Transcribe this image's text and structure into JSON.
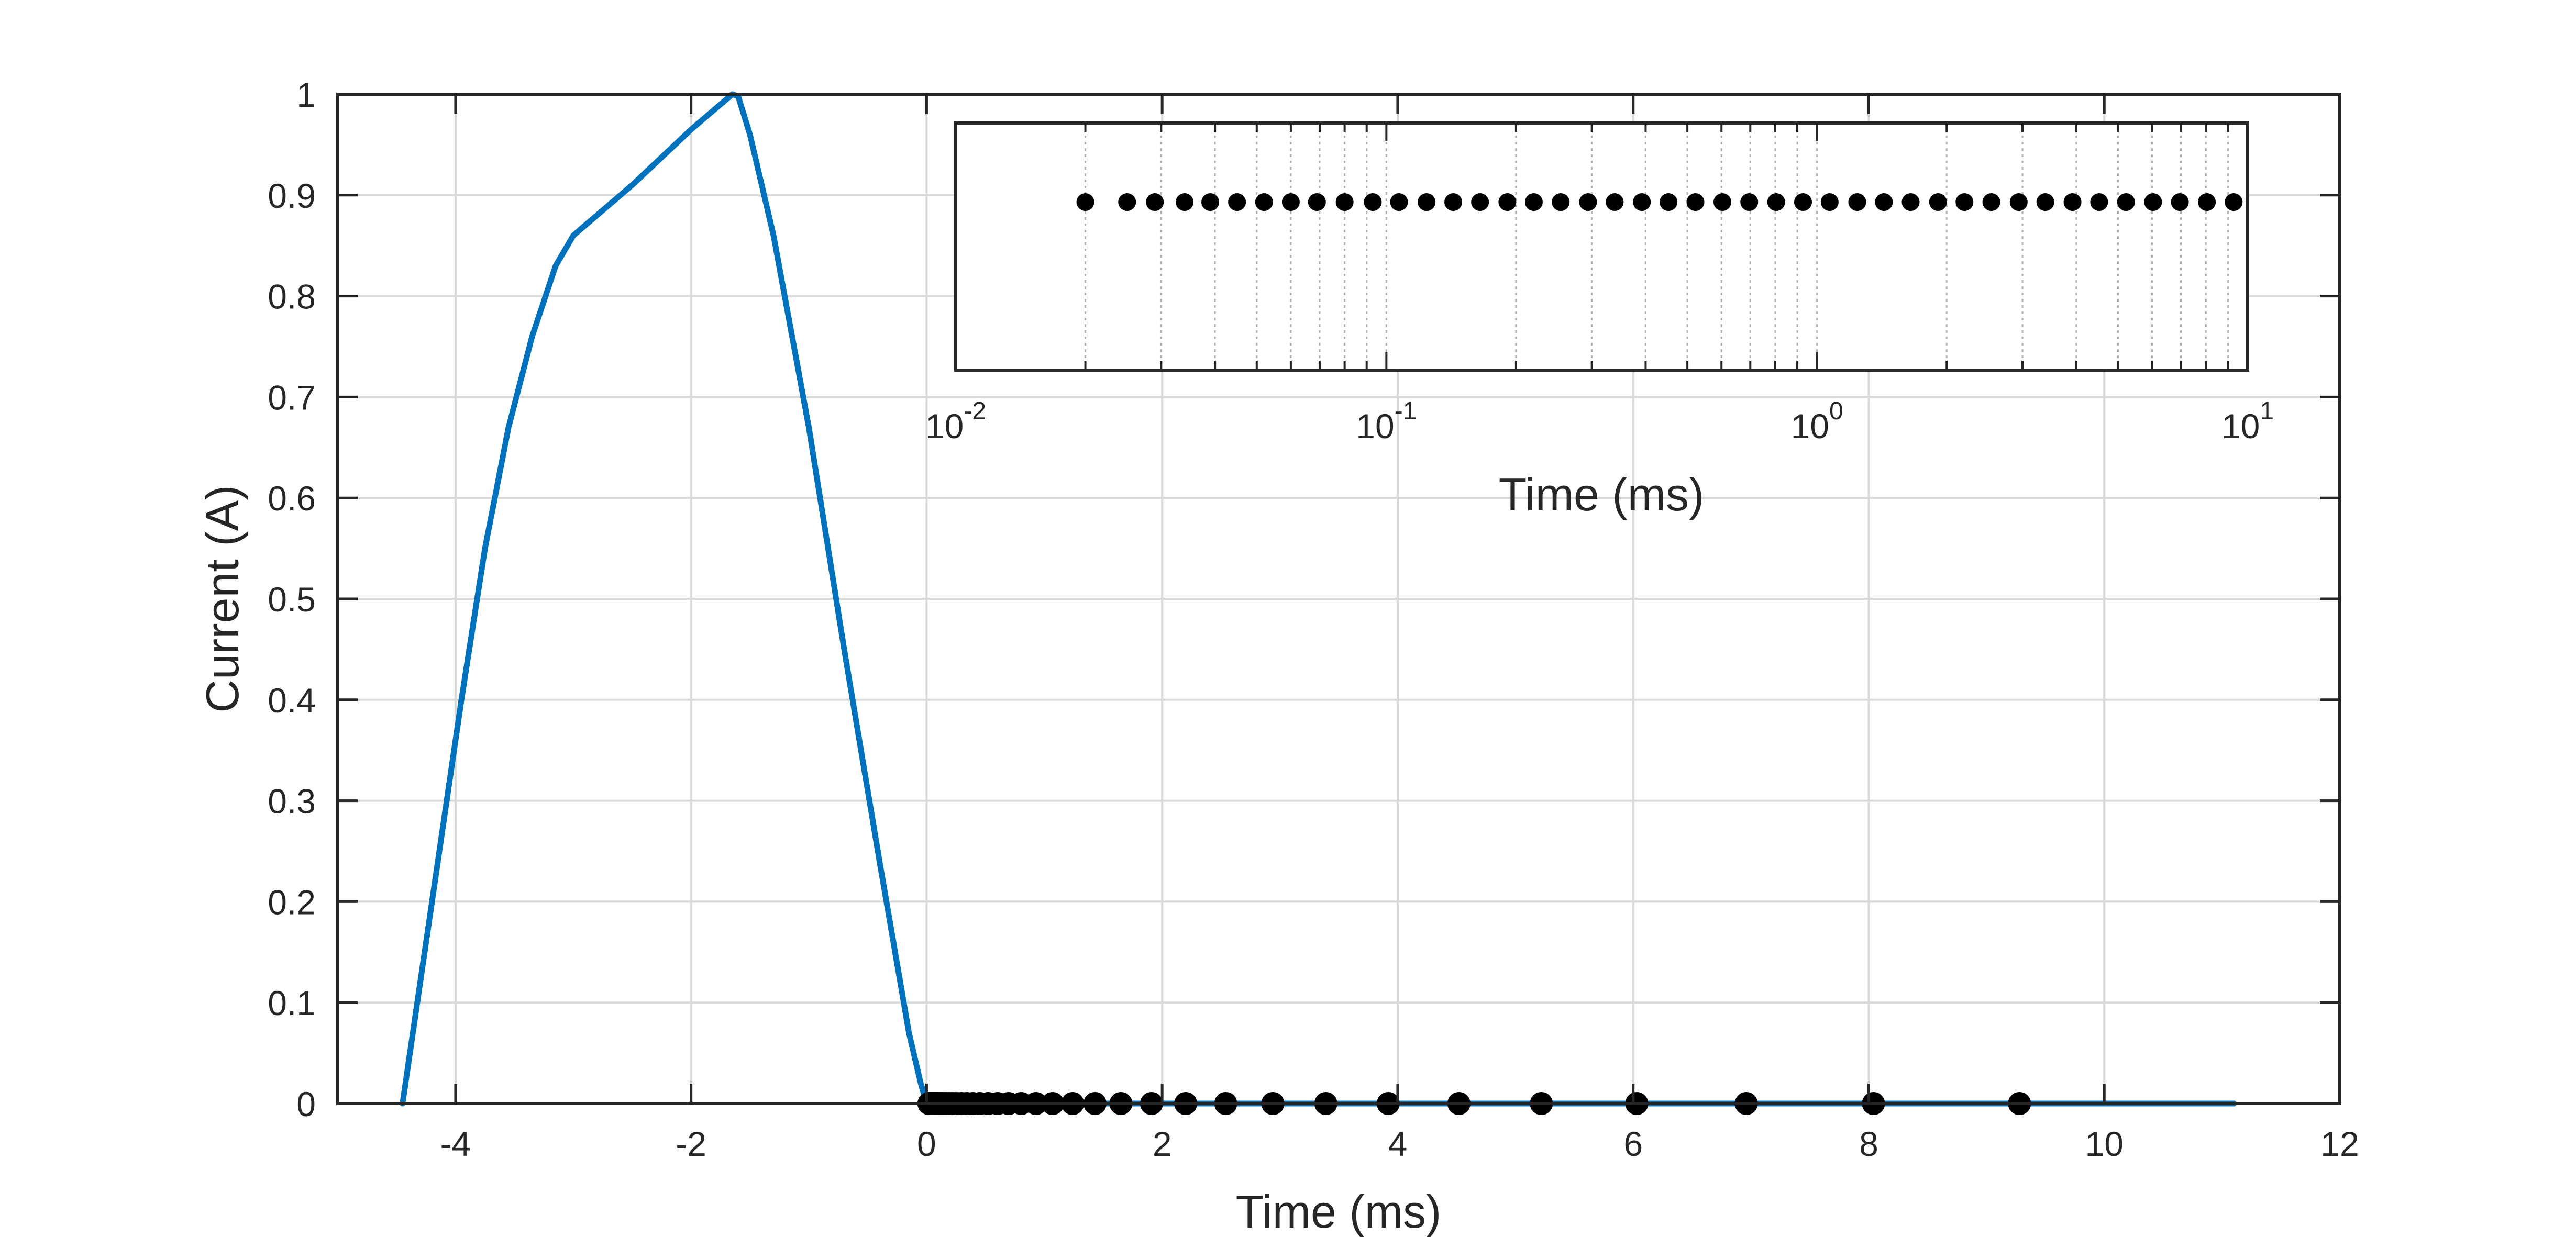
{
  "chart_data": [
    {
      "type": "line",
      "xlabel": "Time (ms)",
      "ylabel": "Current (A)",
      "xlim": [
        -5,
        12
      ],
      "ylim": [
        0,
        1
      ],
      "xticks": [
        "-4",
        "-2",
        "0",
        "2",
        "4",
        "6",
        "8",
        "10",
        "12"
      ],
      "yticks": [
        "0",
        "0.1",
        "0.2",
        "0.3",
        "0.4",
        "0.5",
        "0.6",
        "0.7",
        "0.8",
        "0.9",
        "1"
      ],
      "grid": true,
      "colors": {
        "line": "#0072BD",
        "points": "#000000",
        "grid": "#d9d9d9",
        "axes": "#262626"
      },
      "series": [
        {
          "type": "line",
          "x": [
            -4.45,
            -4.2,
            -3.95,
            -3.75,
            -3.55,
            -3.35,
            -3.15,
            -3.0,
            -2.9,
            -2.5,
            -2.0,
            -1.65,
            -1.6,
            -1.5,
            -1.3,
            -1.0,
            -0.7,
            -0.4,
            -0.15,
            -0.05,
            0.0,
            2.0,
            4.0,
            6.0,
            8.0,
            10.0,
            11.1
          ],
          "y": [
            0.0,
            0.2,
            0.4,
            0.55,
            0.67,
            0.76,
            0.83,
            0.86,
            0.87,
            0.91,
            0.965,
            1.0,
            0.998,
            0.96,
            0.86,
            0.67,
            0.45,
            0.24,
            0.07,
            0.02,
            0.0,
            0.0,
            0.0,
            0.0,
            0.0,
            0.0,
            0.0
          ]
        },
        {
          "type": "scatter",
          "x": [
            0.02,
            0.025,
            0.029,
            0.034,
            0.039,
            0.045,
            0.052,
            0.06,
            0.069,
            0.08,
            0.093,
            0.107,
            0.124,
            0.143,
            0.165,
            0.191,
            0.22,
            0.254,
            0.294,
            0.339,
            0.392,
            0.452,
            0.522,
            0.603,
            0.696,
            0.804,
            0.928,
            1.07,
            1.24,
            1.43,
            1.65,
            1.91,
            2.2,
            2.54,
            2.94,
            3.39,
            3.92,
            4.52,
            5.22,
            6.03,
            6.96,
            8.04,
            9.28
          ],
          "y": [
            0,
            0,
            0,
            0,
            0,
            0,
            0,
            0,
            0,
            0,
            0,
            0,
            0,
            0,
            0,
            0,
            0,
            0,
            0,
            0,
            0,
            0,
            0,
            0,
            0,
            0,
            0,
            0,
            0,
            0,
            0,
            0,
            0,
            0,
            0,
            0,
            0,
            0,
            0,
            0,
            0,
            0,
            0
          ]
        }
      ]
    },
    {
      "type": "scatter",
      "xlabel": "Time (ms)",
      "xscale": "log",
      "xlim": [
        0.01,
        10
      ],
      "xticks": [
        {
          "base": "10",
          "exp": "-2"
        },
        {
          "base": "10",
          "exp": "-1"
        },
        {
          "base": "10",
          "exp": "0"
        },
        {
          "base": "10",
          "exp": "1"
        }
      ],
      "grid": true,
      "series": [
        {
          "type": "scatter",
          "x": [
            0.02,
            0.025,
            0.029,
            0.034,
            0.039,
            0.045,
            0.052,
            0.06,
            0.069,
            0.08,
            0.093,
            0.107,
            0.124,
            0.143,
            0.165,
            0.191,
            0.22,
            0.254,
            0.294,
            0.339,
            0.392,
            0.452,
            0.522,
            0.603,
            0.696,
            0.804,
            0.928,
            1.07,
            1.24,
            1.43,
            1.65,
            1.91,
            2.2,
            2.54,
            2.94,
            3.39,
            3.92,
            4.52,
            5.22,
            6.03,
            6.96,
            8.04,
            9.28
          ]
        }
      ]
    }
  ]
}
